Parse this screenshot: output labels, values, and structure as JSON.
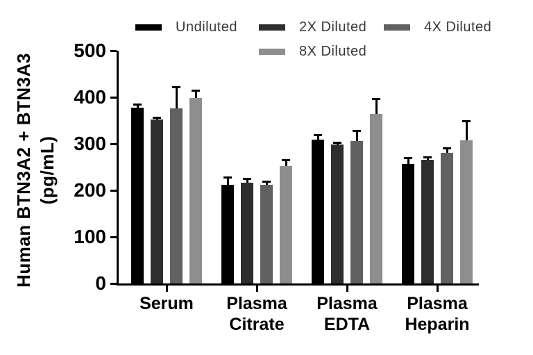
{
  "chart_data": {
    "type": "bar",
    "title": "",
    "ylabel_line1": "Human BTN3A2 + BTN3A3",
    "ylabel_line2": "(pg/mL)",
    "xlabel": "",
    "ylim": [
      0,
      500
    ],
    "yticks": [
      0,
      100,
      200,
      300,
      400,
      500
    ],
    "grid": false,
    "legend_position": "top",
    "error_bar_color": "#000000",
    "categories": [
      {
        "lines": [
          "Serum"
        ]
      },
      {
        "lines": [
          "Plasma",
          "Citrate"
        ]
      },
      {
        "lines": [
          "Plasma",
          "EDTA"
        ]
      },
      {
        "lines": [
          "Plasma",
          "Heparin"
        ]
      }
    ],
    "series": [
      {
        "name": "Undiluted",
        "color": "#000000",
        "values": [
          378,
          212,
          309,
          257
        ],
        "errors": [
          7,
          16,
          10,
          13
        ]
      },
      {
        "name": "2X Diluted",
        "color": "#2e2e2e",
        "values": [
          352,
          216,
          298,
          266
        ],
        "errors": [
          4,
          9,
          5,
          6
        ]
      },
      {
        "name": "4X Diluted",
        "color": "#616161",
        "values": [
          376,
          212,
          306,
          281
        ],
        "errors": [
          46,
          7,
          23,
          10
        ]
      },
      {
        "name": "8X Diluted",
        "color": "#8e8e8e",
        "values": [
          399,
          252,
          364,
          307
        ],
        "errors": [
          16,
          13,
          33,
          42
        ]
      }
    ]
  }
}
